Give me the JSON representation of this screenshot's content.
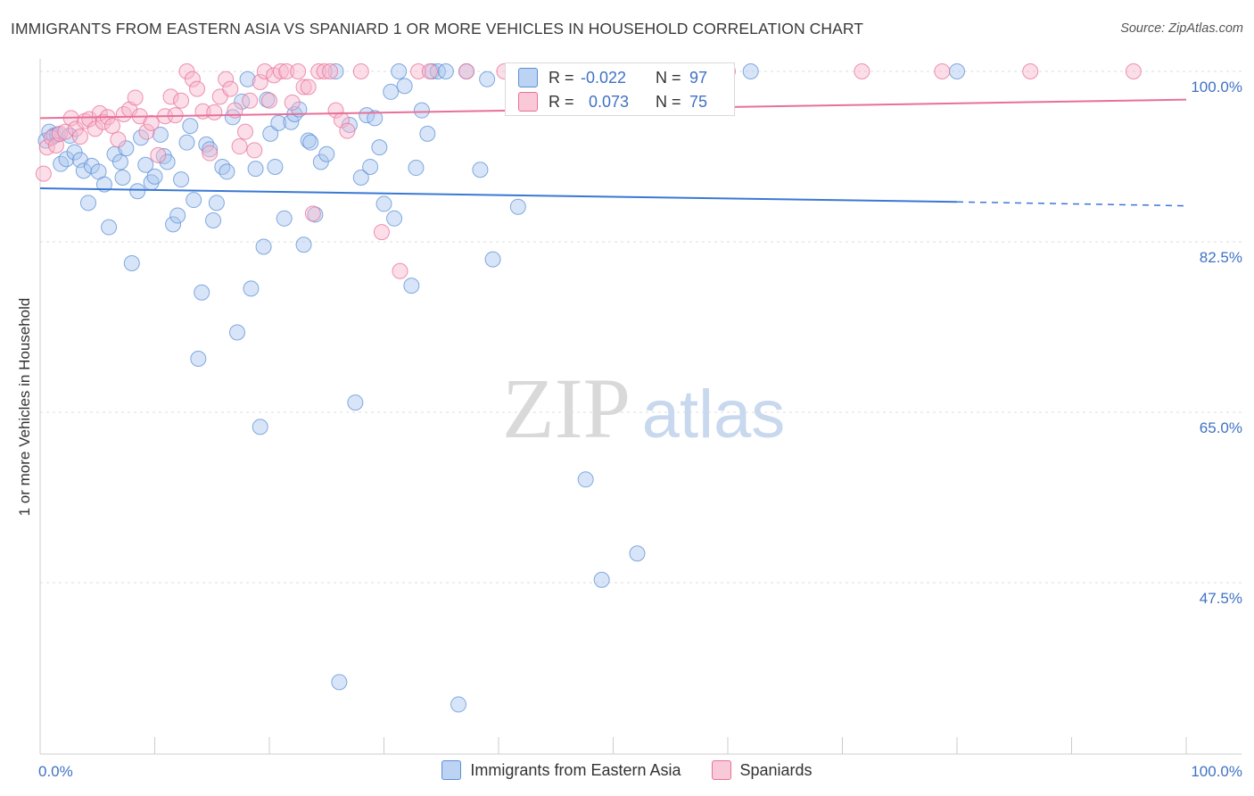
{
  "title": "IMMIGRANTS FROM EASTERN ASIA VS SPANIARD 1 OR MORE VEHICLES IN HOUSEHOLD CORRELATION CHART",
  "source": "Source: ZipAtlas.com",
  "watermark": {
    "zip": "ZIP",
    "atlas": "atlas"
  },
  "colors": {
    "blue": "#5b8fd6",
    "blue_fill": "#a9c6f0",
    "pink": "#e8709a",
    "pink_fill": "#f6b5cb",
    "tick": "#3f72c4"
  },
  "legend": {
    "rows": [
      {
        "r_label": "R =",
        "r_value": "-0.022",
        "n_label": "N =",
        "n_value": "97"
      },
      {
        "r_label": "R =",
        "r_value": "0.073",
        "n_label": "N =",
        "n_value": "75"
      }
    ]
  },
  "chart_data": {
    "type": "scatter",
    "title": "IMMIGRANTS FROM EASTERN ASIA VS SPANIARD 1 OR MORE VEHICLES IN HOUSEHOLD CORRELATION CHART",
    "xlabel": "",
    "ylabel": "1 or more Vehicles in Household",
    "xlim": [
      0,
      100
    ],
    "ylim": [
      31,
      102
    ],
    "x_tick_labels": [
      "0.0%",
      "100.0%"
    ],
    "y_ticks": [
      {
        "value": 100,
        "label": "100.0%"
      },
      {
        "value": 82.5,
        "label": "82.5%"
      },
      {
        "value": 65,
        "label": "65.0%"
      },
      {
        "value": 47.5,
        "label": "47.5%"
      }
    ],
    "grid": true,
    "series": [
      {
        "name": "Immigrants from Eastern Asia",
        "color": "#5b8fd6",
        "trend": {
          "x": [
            0,
            80
          ],
          "y": [
            88.0,
            86.6
          ],
          "dashed_x": [
            80,
            100
          ],
          "dashed_y": [
            86.6,
            86.2
          ]
        },
        "points": [
          [
            0.5,
            92.9
          ],
          [
            0.8,
            93.8
          ],
          [
            1.2,
            93.4
          ],
          [
            1.5,
            93.5
          ],
          [
            1.8,
            90.5
          ],
          [
            2.3,
            91.0
          ],
          [
            2.6,
            93.4
          ],
          [
            3.0,
            91.7
          ],
          [
            3.5,
            90.9
          ],
          [
            3.8,
            89.8
          ],
          [
            4.2,
            86.5
          ],
          [
            4.5,
            90.3
          ],
          [
            5.1,
            89.7
          ],
          [
            5.6,
            88.4
          ],
          [
            6.0,
            84.0
          ],
          [
            6.5,
            91.5
          ],
          [
            7.0,
            90.7
          ],
          [
            7.2,
            89.1
          ],
          [
            7.5,
            92.1
          ],
          [
            8.0,
            80.3
          ],
          [
            8.5,
            87.7
          ],
          [
            8.8,
            93.2
          ],
          [
            9.2,
            90.4
          ],
          [
            9.7,
            88.6
          ],
          [
            10.0,
            89.2
          ],
          [
            10.5,
            93.5
          ],
          [
            10.8,
            91.3
          ],
          [
            11.1,
            90.7
          ],
          [
            11.6,
            84.3
          ],
          [
            12.0,
            85.2
          ],
          [
            12.3,
            88.9
          ],
          [
            12.8,
            92.7
          ],
          [
            13.1,
            94.4
          ],
          [
            13.4,
            86.8
          ],
          [
            13.8,
            70.5
          ],
          [
            14.1,
            77.3
          ],
          [
            14.5,
            92.5
          ],
          [
            14.8,
            92.0
          ],
          [
            15.1,
            84.7
          ],
          [
            15.4,
            86.5
          ],
          [
            15.9,
            90.2
          ],
          [
            16.3,
            89.7
          ],
          [
            16.8,
            95.3
          ],
          [
            17.2,
            73.2
          ],
          [
            17.6,
            96.9
          ],
          [
            18.1,
            99.2
          ],
          [
            18.4,
            77.7
          ],
          [
            18.8,
            90.0
          ],
          [
            19.2,
            63.5
          ],
          [
            19.5,
            82.0
          ],
          [
            19.8,
            97.1
          ],
          [
            20.1,
            93.6
          ],
          [
            20.5,
            90.2
          ],
          [
            20.8,
            94.7
          ],
          [
            21.3,
            84.9
          ],
          [
            21.9,
            94.8
          ],
          [
            22.2,
            95.6
          ],
          [
            22.6,
            96.1
          ],
          [
            23.0,
            82.2
          ],
          [
            23.4,
            92.9
          ],
          [
            23.6,
            92.7
          ],
          [
            24.0,
            85.3
          ],
          [
            24.5,
            90.7
          ],
          [
            25.0,
            91.5
          ],
          [
            25.8,
            100.0
          ],
          [
            26.1,
            37.3
          ],
          [
            27.0,
            94.5
          ],
          [
            27.5,
            66.0
          ],
          [
            28.0,
            89.1
          ],
          [
            28.5,
            95.5
          ],
          [
            28.8,
            90.2
          ],
          [
            29.2,
            95.2
          ],
          [
            29.6,
            92.2
          ],
          [
            30.0,
            86.4
          ],
          [
            30.6,
            97.9
          ],
          [
            30.9,
            84.9
          ],
          [
            31.3,
            100.0
          ],
          [
            31.8,
            98.5
          ],
          [
            32.4,
            78.0
          ],
          [
            32.8,
            90.1
          ],
          [
            33.3,
            96.0
          ],
          [
            33.8,
            93.6
          ],
          [
            34.2,
            100.0
          ],
          [
            34.7,
            100.0
          ],
          [
            35.4,
            100.0
          ],
          [
            36.5,
            35.0
          ],
          [
            37.2,
            100.0
          ],
          [
            38.4,
            89.9
          ],
          [
            39.0,
            99.2
          ],
          [
            39.5,
            80.7
          ],
          [
            41.7,
            86.1
          ],
          [
            47.6,
            58.1
          ],
          [
            49.0,
            47.8
          ],
          [
            52.1,
            50.5
          ],
          [
            56.8,
            100.0
          ],
          [
            62.0,
            100.0
          ],
          [
            80.0,
            100.0
          ]
        ]
      },
      {
        "name": "Spaniards",
        "color": "#e8709a",
        "trend": {
          "x": [
            0,
            100
          ],
          "y": [
            95.2,
            97.1
          ]
        },
        "points": [
          [
            0.3,
            89.5
          ],
          [
            0.6,
            92.2
          ],
          [
            1.0,
            93.2
          ],
          [
            1.4,
            92.4
          ],
          [
            1.7,
            93.6
          ],
          [
            2.2,
            93.8
          ],
          [
            2.7,
            95.2
          ],
          [
            3.1,
            94.1
          ],
          [
            3.5,
            93.3
          ],
          [
            3.9,
            94.9
          ],
          [
            4.3,
            95.1
          ],
          [
            4.8,
            94.1
          ],
          [
            5.2,
            95.7
          ],
          [
            5.5,
            94.8
          ],
          [
            5.9,
            95.3
          ],
          [
            6.3,
            94.4
          ],
          [
            6.8,
            93.0
          ],
          [
            7.3,
            95.6
          ],
          [
            7.8,
            96.1
          ],
          [
            8.3,
            97.3
          ],
          [
            8.7,
            95.4
          ],
          [
            9.3,
            93.8
          ],
          [
            9.7,
            94.7
          ],
          [
            10.3,
            91.4
          ],
          [
            10.9,
            95.4
          ],
          [
            11.4,
            97.4
          ],
          [
            11.8,
            95.5
          ],
          [
            12.3,
            97.0
          ],
          [
            12.8,
            100.0
          ],
          [
            13.3,
            99.2
          ],
          [
            13.7,
            98.2
          ],
          [
            14.2,
            95.9
          ],
          [
            14.8,
            91.6
          ],
          [
            15.2,
            95.8
          ],
          [
            15.7,
            97.4
          ],
          [
            16.2,
            99.2
          ],
          [
            16.6,
            98.2
          ],
          [
            17.0,
            96.0
          ],
          [
            17.4,
            92.3
          ],
          [
            17.9,
            93.8
          ],
          [
            18.3,
            97.0
          ],
          [
            18.7,
            91.9
          ],
          [
            19.2,
            98.9
          ],
          [
            19.6,
            100.0
          ],
          [
            20.0,
            97.0
          ],
          [
            20.4,
            99.6
          ],
          [
            21.0,
            100.0
          ],
          [
            21.5,
            100.0
          ],
          [
            22.0,
            96.8
          ],
          [
            22.5,
            100.0
          ],
          [
            23.0,
            98.4
          ],
          [
            23.4,
            98.4
          ],
          [
            23.8,
            85.4
          ],
          [
            24.3,
            100.0
          ],
          [
            24.8,
            100.0
          ],
          [
            25.3,
            100.0
          ],
          [
            25.8,
            96.0
          ],
          [
            26.3,
            95.0
          ],
          [
            26.8,
            93.9
          ],
          [
            28.0,
            100.0
          ],
          [
            29.8,
            83.5
          ],
          [
            31.4,
            79.5
          ],
          [
            33.0,
            100.0
          ],
          [
            34.0,
            100.0
          ],
          [
            37.2,
            100.0
          ],
          [
            40.5,
            100.0
          ],
          [
            46.7,
            100.0
          ],
          [
            52.0,
            100.0
          ],
          [
            54.6,
            100.0
          ],
          [
            58.0,
            99.8
          ],
          [
            60.0,
            100.0
          ],
          [
            71.7,
            100.0
          ],
          [
            78.7,
            100.0
          ],
          [
            86.4,
            100.0
          ],
          [
            95.4,
            100.0
          ]
        ]
      }
    ]
  }
}
